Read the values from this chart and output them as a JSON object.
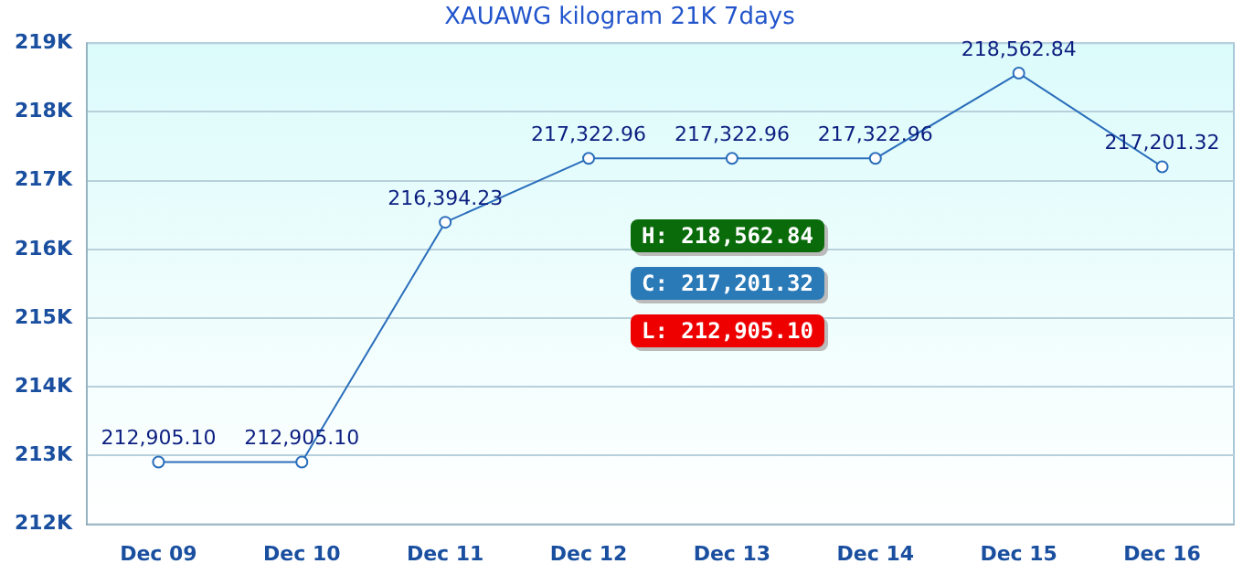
{
  "chart_data": {
    "type": "line",
    "title": "XAUAWG kilogram 21K 7days",
    "categories": [
      "Dec 09",
      "Dec 10",
      "Dec 11",
      "Dec 12",
      "Dec 13",
      "Dec 14",
      "Dec 15",
      "Dec 16"
    ],
    "series": [
      {
        "color": "#2a6ebb",
        "values": [
          212905.1,
          212905.1,
          216394.23,
          217322.96,
          217322.96,
          217322.96,
          218562.84,
          217201.32
        ],
        "value_labels": [
          "212,905.10",
          "212,905.10",
          "216,394.23",
          "217,322.96",
          "217,322.96",
          "217,322.96",
          "218,562.84",
          "217,201.32"
        ]
      }
    ],
    "ylim": [
      212000,
      219000
    ],
    "yticks": [
      {
        "value": 212000,
        "label": "212K"
      },
      {
        "value": 213000,
        "label": "213K"
      },
      {
        "value": 214000,
        "label": "214K"
      },
      {
        "value": 215000,
        "label": "215K"
      },
      {
        "value": 216000,
        "label": "216K"
      },
      {
        "value": 217000,
        "label": "217K"
      },
      {
        "value": 218000,
        "label": "218K"
      },
      {
        "value": 219000,
        "label": "219K"
      }
    ],
    "grid": "y",
    "marker": "circle",
    "line_style": "solid",
    "legend": false,
    "annotations": [
      "H: 218,562.84",
      "C: 217,201.32",
      "L: 212,905.10"
    ]
  }
}
